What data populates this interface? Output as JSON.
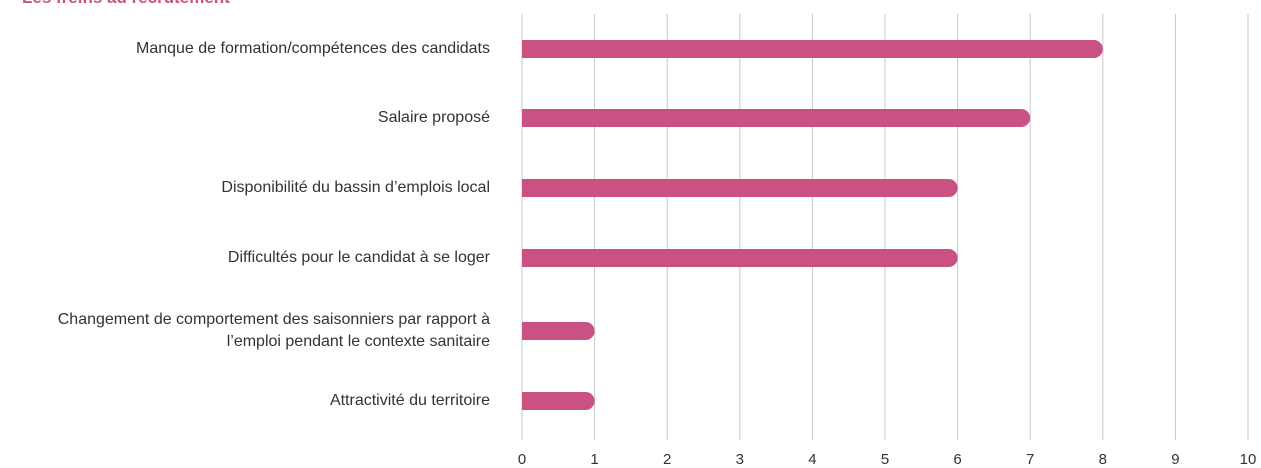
{
  "chart_data": {
    "type": "bar",
    "orientation": "horizontal",
    "title": "Les freins au recrutement",
    "categories": [
      "Manque de formation/compétences des candidats",
      "Salaire proposé",
      "Disponibilité du bassin d’emplois local",
      "Difficultés pour le candidat à se loger",
      "Changement de comportement des saisonniers par rapport à l’emploi pendant le contexte sanitaire",
      "Attractivité du territoire"
    ],
    "values": [
      8,
      7,
      6,
      6,
      1,
      1
    ],
    "color": "#c95282",
    "xlim": [
      0,
      10
    ],
    "xticks": [
      0,
      1,
      2,
      3,
      4,
      5,
      6,
      7,
      8,
      9,
      10
    ],
    "grid": true
  }
}
